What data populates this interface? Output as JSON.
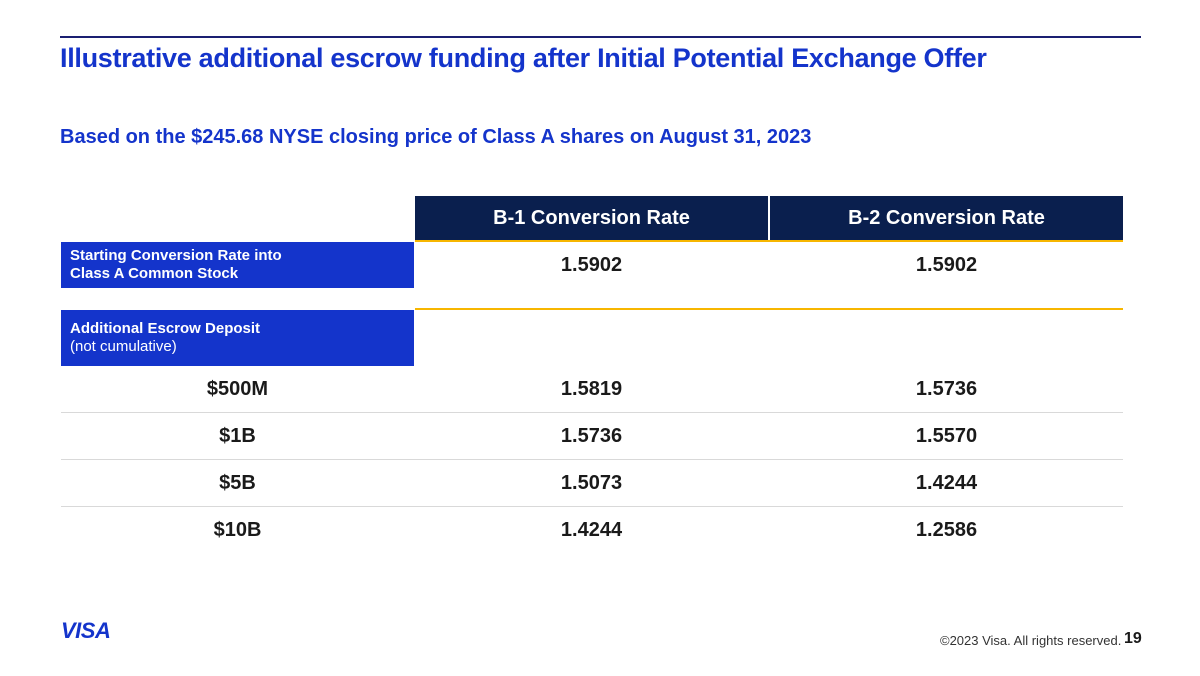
{
  "header": {
    "title": "Illustrative additional escrow funding after Initial Potential Exchange Offer",
    "subtitle": "Based on the $245.68 NYSE closing price of Class A shares on August 31, 2023"
  },
  "table": {
    "columns": [
      "B-1 Conversion Rate",
      "B-2 Conversion Rate"
    ],
    "starting": {
      "label_line1": "Starting Conversion Rate into",
      "label_line2": "Class A Common Stock",
      "b1": "1.5902",
      "b2": "1.5902"
    },
    "escrow": {
      "label_line1": "Additional Escrow Deposit",
      "label_line2": "(not cumulative)"
    },
    "rows": [
      {
        "deposit": "$500M",
        "b1": "1.5819",
        "b2": "1.5736"
      },
      {
        "deposit": "$1B",
        "b1": "1.5736",
        "b2": "1.5570"
      },
      {
        "deposit": "$5B",
        "b1": "1.5073",
        "b2": "1.4244"
      },
      {
        "deposit": "$10B",
        "b1": "1.4244",
        "b2": "1.2586"
      }
    ]
  },
  "footer": {
    "logo": "VISA",
    "copyright": "©2023 Visa. All rights reserved.",
    "page": "19"
  },
  "colors": {
    "accent_blue": "#1434cb",
    "navy": "#0a1f4e",
    "gold": "#f7b600"
  }
}
